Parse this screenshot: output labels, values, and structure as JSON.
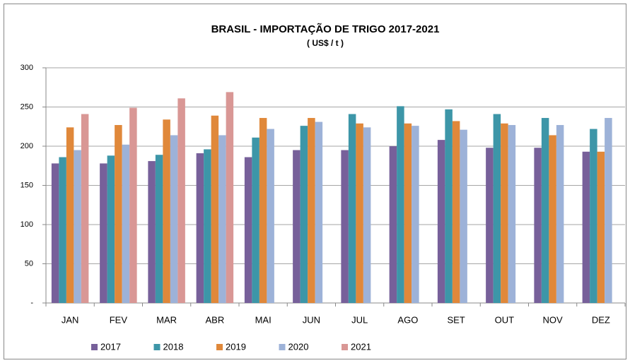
{
  "chart_data": {
    "type": "bar",
    "title": "BRASIL - IMPORTAÇÃO DE TRIGO 2017-2021",
    "subtitle": "( US$ / t )",
    "categories": [
      "JAN",
      "FEV",
      "MAR",
      "ABR",
      "MAI",
      "JUN",
      "JUL",
      "AGO",
      "SET",
      "OUT",
      "NOV",
      "DEZ"
    ],
    "series": [
      {
        "name": "2017",
        "color": "#77609a",
        "values": [
          178,
          178,
          181,
          191,
          186,
          195,
          195,
          200,
          208,
          198,
          198,
          193
        ]
      },
      {
        "name": "2018",
        "color": "#3d96a8",
        "values": [
          186,
          188,
          189,
          196,
          211,
          226,
          241,
          251,
          247,
          241,
          236,
          222
        ]
      },
      {
        "name": "2019",
        "color": "#e0883a",
        "values": [
          224,
          227,
          234,
          239,
          236,
          236,
          229,
          229,
          232,
          229,
          214,
          193
        ]
      },
      {
        "name": "2020",
        "color": "#9db2d8",
        "values": [
          195,
          202,
          214,
          214,
          222,
          231,
          224,
          226,
          221,
          227,
          227,
          236
        ]
      },
      {
        "name": "2021",
        "color": "#d99795",
        "values": [
          241,
          249,
          261,
          269,
          null,
          null,
          null,
          null,
          null,
          null,
          null,
          null
        ]
      }
    ],
    "ylim": [
      0,
      300
    ],
    "yticks": [
      {
        "value": 0,
        "label": "-"
      },
      50,
      100,
      150,
      200,
      250,
      300
    ],
    "grid": true,
    "legend": "bottom"
  }
}
